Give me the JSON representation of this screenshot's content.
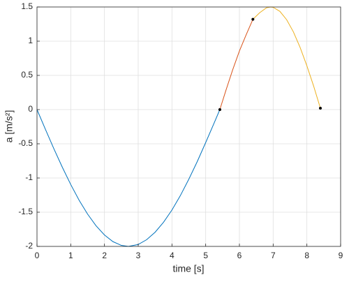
{
  "chart_data": {
    "type": "line",
    "xlabel": "time [s]",
    "ylabel": "a [m/s²]",
    "xlim": [
      0,
      9
    ],
    "xticks": [
      0,
      1,
      2,
      3,
      4,
      5,
      6,
      7,
      8,
      9
    ],
    "ylim": [
      -2,
      1.5
    ],
    "yticks": [
      -2,
      -1.5,
      -1,
      -0.5,
      0,
      0.5,
      1,
      1.5
    ],
    "grid": true,
    "series": [
      {
        "color": "#0072bd",
        "x": [
          0,
          0.25,
          0.5,
          0.75,
          1,
          1.25,
          1.5,
          1.75,
          2,
          2.25,
          2.5,
          2.71,
          3,
          3.25,
          3.5,
          3.75,
          4,
          4.25,
          4.5,
          4.75,
          5,
          5.25,
          5.42
        ],
        "values": [
          0,
          -0.289,
          -0.572,
          -0.842,
          -1.095,
          -1.326,
          -1.528,
          -1.698,
          -1.833,
          -1.93,
          -1.985,
          -2,
          -1.972,
          -1.902,
          -1.793,
          -1.647,
          -1.468,
          -1.257,
          -1.018,
          -0.76,
          -0.482,
          -0.197,
          0
        ]
      },
      {
        "color": "#d95319",
        "x": [
          5.42,
          5.6,
          5.8,
          6.0,
          6.2,
          6.4
        ],
        "values": [
          0,
          0.281,
          0.581,
          0.856,
          1.094,
          1.32
        ]
      },
      {
        "color": "#edb120",
        "x": [
          6.4,
          6.6,
          6.8,
          6.92,
          7.0,
          7.2,
          7.4,
          7.6,
          7.8,
          8.0,
          8.2,
          8.4
        ],
        "values": [
          1.32,
          1.416,
          1.488,
          1.5,
          1.495,
          1.436,
          1.314,
          1.136,
          0.907,
          0.64,
          0.344,
          0.02
        ]
      },
      {
        "color": "#000000",
        "marker": true,
        "x": [
          5.42,
          6.4,
          8.4
        ],
        "values": [
          0,
          1.32,
          0.02
        ]
      }
    ]
  }
}
